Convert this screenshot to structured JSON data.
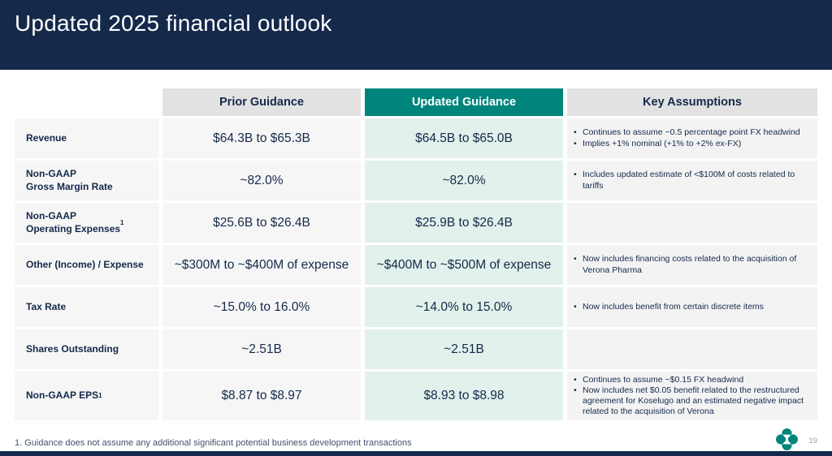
{
  "slide": {
    "title": "Updated 2025 financial outlook",
    "footnote": "1. Guidance does not assume any additional significant potential business development transactions",
    "page_number": "19"
  },
  "colors": {
    "header_navy": "#15294B",
    "accent_teal": "#00857C",
    "updated_cell_mint": "#E2F1EB",
    "header_gray": "#E2E2E2",
    "cell_gray": "#F6F6F6"
  },
  "table": {
    "headers": {
      "prior": "Prior Guidance",
      "updated": "Updated Guidance",
      "assumptions": "Key Assumptions"
    },
    "rows": [
      {
        "label": "Revenue",
        "sup": "",
        "prior": "$64.3B to $65.3B",
        "updated": "$64.5B to $65.0B",
        "assumptions": [
          "Continues to assume ~0.5 percentage point FX headwind",
          "Implies +1% nominal (+1% to +2% ex-FX)"
        ]
      },
      {
        "label": "Non-GAAP\nGross Margin Rate",
        "sup": "",
        "prior": "~82.0%",
        "updated": "~82.0%",
        "assumptions": [
          "Includes updated estimate of <$100M of costs related to tariffs"
        ]
      },
      {
        "label": "Non-GAAP\nOperating Expenses",
        "sup": "1",
        "prior": "$25.6B to $26.4B",
        "updated": "$25.9B to $26.4B",
        "assumptions": []
      },
      {
        "label": "Other (Income) / Expense",
        "sup": "",
        "prior": "~$300M to ~$400M of expense",
        "updated": "~$400M to ~$500M of expense",
        "assumptions": [
          "Now includes financing costs related to the acquisition of Verona Pharma"
        ]
      },
      {
        "label": "Tax Rate",
        "sup": "",
        "prior": "~15.0% to 16.0%",
        "updated": "~14.0% to 15.0%",
        "assumptions": [
          "Now includes benefit from certain discrete items"
        ]
      },
      {
        "label": "Shares Outstanding",
        "sup": "",
        "prior": "~2.51B",
        "updated": "~2.51B",
        "assumptions": []
      },
      {
        "label": "Non-GAAP EPS",
        "sup": "1",
        "prior": "$8.87 to $8.97",
        "updated": "$8.93 to $8.98",
        "assumptions": [
          "Continues to assume ~$0.15 FX headwind",
          "Now includes net $0.05 benefit related to the restructured agreement for Koselugo and an estimated negative impact related to the acquisition of Verona"
        ]
      }
    ]
  }
}
